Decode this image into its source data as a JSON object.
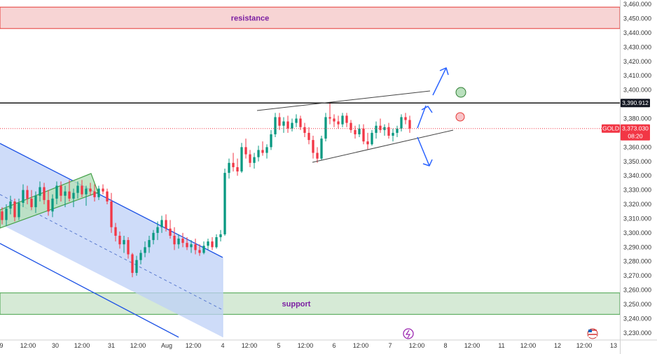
{
  "chart_data": {
    "type": "candlestick",
    "symbol": "GOLD",
    "current_price": "3,373.030",
    "countdown": "08:20",
    "marked_level": "3,390.912",
    "marked_level_value": 3390.912,
    "current_price_value": 3373.03,
    "ylim": [
      3227,
      3462
    ],
    "y_ticks": [
      {
        "v": 3460,
        "label": "3,460.000"
      },
      {
        "v": 3450,
        "label": "3,450.000"
      },
      {
        "v": 3440,
        "label": "3,440.000"
      },
      {
        "v": 3430,
        "label": "3,430.000"
      },
      {
        "v": 3420,
        "label": "3,420.000"
      },
      {
        "v": 3410,
        "label": "3,410.000"
      },
      {
        "v": 3400,
        "label": "3,400.000"
      },
      {
        "v": 3380,
        "label": "3,380.000"
      },
      {
        "v": 3360,
        "label": "3,360.000"
      },
      {
        "v": 3350,
        "label": "3,350.000"
      },
      {
        "v": 3340,
        "label": "3,340.000"
      },
      {
        "v": 3330,
        "label": "3,330.000"
      },
      {
        "v": 3320,
        "label": "3,320.000"
      },
      {
        "v": 3310,
        "label": "3,310.000"
      },
      {
        "v": 3300,
        "label": "3,300.000"
      },
      {
        "v": 3290,
        "label": "3,290.000"
      },
      {
        "v": 3280,
        "label": "3,280.000"
      },
      {
        "v": 3270,
        "label": "3,270.000"
      },
      {
        "v": 3260,
        "label": "3,260.000"
      },
      {
        "v": 3250,
        "label": "3,250.000"
      },
      {
        "v": 3240,
        "label": "3,240.000"
      },
      {
        "v": 3230,
        "label": "3,230.000"
      }
    ],
    "x_ticks": [
      "9",
      "12:00",
      "30",
      "12:00",
      "31",
      "12:00",
      "Aug",
      "12:00",
      "4",
      "12:00",
      "5",
      "12:00",
      "6",
      "12:00",
      "7",
      "12:00",
      "8",
      "12:00",
      "11",
      "12:00",
      "12",
      "12:00",
      "13"
    ],
    "zones": [
      {
        "name": "resistance",
        "low": 3443,
        "high": 3458,
        "color": "#f7d4d4",
        "border": "#e53935"
      },
      {
        "name": "support",
        "low": 3243,
        "high": 3258,
        "color": "#d6ead6",
        "border": "#43a047"
      }
    ],
    "colors": {
      "up": "#089981",
      "down": "#f23645",
      "channel": "#1e53e5",
      "level": "#000000",
      "current": "#f23645",
      "zone_text": "#7b1fa2"
    },
    "ohlc": [
      [
        3315,
        3318,
        3306,
        3309
      ],
      [
        3309,
        3320,
        3305,
        3317
      ],
      [
        3317,
        3326,
        3313,
        3322
      ],
      [
        3322,
        3324,
        3308,
        3311
      ],
      [
        3311,
        3324,
        3309,
        3321
      ],
      [
        3321,
        3334,
        3318,
        3330
      ],
      [
        3330,
        3333,
        3320,
        3324
      ],
      [
        3324,
        3330,
        3316,
        3318
      ],
      [
        3318,
        3329,
        3314,
        3326
      ],
      [
        3326,
        3336,
        3322,
        3332
      ],
      [
        3332,
        3335,
        3320,
        3323
      ],
      [
        3323,
        3330,
        3312,
        3315
      ],
      [
        3315,
        3327,
        3311,
        3324
      ],
      [
        3324,
        3336,
        3320,
        3333
      ],
      [
        3333,
        3336,
        3322,
        3326
      ],
      [
        3326,
        3333,
        3318,
        3329
      ],
      [
        3329,
        3337,
        3322,
        3324
      ],
      [
        3324,
        3331,
        3318,
        3328
      ],
      [
        3328,
        3336,
        3324,
        3333
      ],
      [
        3333,
        3337,
        3325,
        3327
      ],
      [
        3327,
        3333,
        3319,
        3331
      ],
      [
        3331,
        3335,
        3326,
        3329
      ],
      [
        3329,
        3334,
        3322,
        3325
      ],
      [
        3325,
        3333,
        3323,
        3331
      ],
      [
        3331,
        3334,
        3327,
        3329
      ],
      [
        3329,
        3331,
        3320,
        3322
      ],
      [
        3322,
        3328,
        3300,
        3304
      ],
      [
        3304,
        3307,
        3294,
        3298
      ],
      [
        3298,
        3301,
        3289,
        3292
      ],
      [
        3292,
        3298,
        3286,
        3295
      ],
      [
        3295,
        3297,
        3282,
        3285
      ],
      [
        3285,
        3286,
        3269,
        3272
      ],
      [
        3272,
        3284,
        3270,
        3281
      ],
      [
        3281,
        3288,
        3278,
        3286
      ],
      [
        3286,
        3294,
        3283,
        3290
      ],
      [
        3290,
        3298,
        3286,
        3295
      ],
      [
        3295,
        3302,
        3292,
        3300
      ],
      [
        3300,
        3308,
        3295,
        3304
      ],
      [
        3304,
        3312,
        3300,
        3309
      ],
      [
        3309,
        3313,
        3301,
        3303
      ],
      [
        3303,
        3309,
        3296,
        3298
      ],
      [
        3298,
        3304,
        3288,
        3292
      ],
      [
        3292,
        3299,
        3289,
        3296
      ],
      [
        3296,
        3300,
        3290,
        3293
      ],
      [
        3293,
        3297,
        3288,
        3290
      ],
      [
        3290,
        3295,
        3286,
        3292
      ],
      [
        3292,
        3296,
        3285,
        3288
      ],
      [
        3288,
        3292,
        3284,
        3286
      ],
      [
        3286,
        3294,
        3285,
        3291
      ],
      [
        3291,
        3296,
        3288,
        3294
      ],
      [
        3294,
        3297,
        3288,
        3290
      ],
      [
        3290,
        3299,
        3289,
        3297
      ],
      [
        3297,
        3302,
        3294,
        3299
      ],
      [
        3299,
        3345,
        3298,
        3342
      ],
      [
        3342,
        3352,
        3338,
        3349
      ],
      [
        3349,
        3356,
        3343,
        3346
      ],
      [
        3346,
        3352,
        3340,
        3343
      ],
      [
        3343,
        3363,
        3342,
        3360
      ],
      [
        3360,
        3366,
        3352,
        3355
      ],
      [
        3355,
        3358,
        3346,
        3349
      ],
      [
        3349,
        3356,
        3345,
        3353
      ],
      [
        3353,
        3361,
        3350,
        3358
      ],
      [
        3358,
        3364,
        3354,
        3356
      ],
      [
        3356,
        3362,
        3352,
        3360
      ],
      [
        3360,
        3372,
        3358,
        3369
      ],
      [
        3369,
        3384,
        3367,
        3381
      ],
      [
        3381,
        3384,
        3372,
        3375
      ],
      [
        3375,
        3381,
        3370,
        3378
      ],
      [
        3378,
        3382,
        3370,
        3373
      ],
      [
        3373,
        3380,
        3371,
        3377
      ],
      [
        3377,
        3383,
        3374,
        3380
      ],
      [
        3380,
        3382,
        3372,
        3374
      ],
      [
        3374,
        3377,
        3367,
        3370
      ],
      [
        3370,
        3374,
        3362,
        3365
      ],
      [
        3365,
        3368,
        3352,
        3356
      ],
      [
        3356,
        3360,
        3349,
        3352
      ],
      [
        3352,
        3368,
        3351,
        3366
      ],
      [
        3366,
        3384,
        3364,
        3381
      ],
      [
        3381,
        3391,
        3376,
        3380
      ],
      [
        3380,
        3383,
        3374,
        3378
      ],
      [
        3378,
        3382,
        3373,
        3376
      ],
      [
        3376,
        3384,
        3374,
        3382
      ],
      [
        3382,
        3384,
        3374,
        3377
      ],
      [
        3377,
        3379,
        3370,
        3372
      ],
      [
        3372,
        3375,
        3366,
        3369
      ],
      [
        3369,
        3376,
        3367,
        3373
      ],
      [
        3373,
        3376,
        3362,
        3364
      ],
      [
        3364,
        3370,
        3358,
        3362
      ],
      [
        3362,
        3372,
        3361,
        3370
      ],
      [
        3370,
        3378,
        3366,
        3375
      ],
      [
        3375,
        3380,
        3370,
        3372
      ],
      [
        3372,
        3376,
        3368,
        3374
      ],
      [
        3374,
        3377,
        3366,
        3368
      ],
      [
        3368,
        3373,
        3364,
        3370
      ],
      [
        3370,
        3375,
        3367,
        3373
      ],
      [
        3373,
        3383,
        3371,
        3381
      ],
      [
        3381,
        3384,
        3376,
        3379
      ],
      [
        3379,
        3382,
        3370,
        3373
      ]
    ]
  }
}
